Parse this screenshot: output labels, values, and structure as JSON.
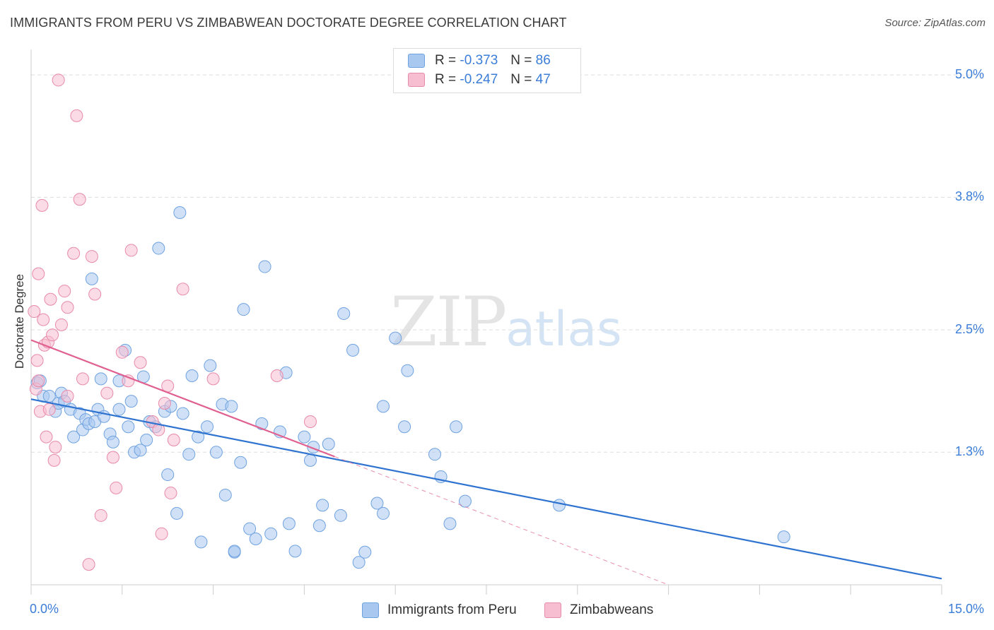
{
  "title": "IMMIGRANTS FROM PERU VS ZIMBABWEAN DOCTORATE DEGREE CORRELATION CHART",
  "source": "Source: ZipAtlas.com",
  "watermark": {
    "zip": "ZIP",
    "atlas": "atlas"
  },
  "legend": {
    "r_label": "R =",
    "n_label": "N =",
    "rows": [
      {
        "r": "-0.373",
        "n": "86",
        "color": "#a9c8f0"
      },
      {
        "r": "-0.247",
        "n": "47",
        "color": "#f7bdd0"
      }
    ]
  },
  "chart_data": {
    "type": "scatter",
    "ylabel": "Doctorate Degree",
    "xlim": [
      0,
      15
    ],
    "ylim": [
      0,
      5.25
    ],
    "x_tick_labels": [
      "0.0%",
      "15.0%"
    ],
    "y_ticks": [
      {
        "value": 1.3,
        "label": "1.3%"
      },
      {
        "value": 2.5,
        "label": "2.5%"
      },
      {
        "value": 3.8,
        "label": "3.8%"
      },
      {
        "value": 5.0,
        "label": "5.0%"
      }
    ],
    "grid": true,
    "series": [
      {
        "name": "Immigrants from Peru",
        "color": "#a9c8f0",
        "stroke": "#6fa2e0",
        "trend_color": "#2f73d0",
        "trend": {
          "x1": 0.0,
          "y1": 1.82,
          "x2": 15.0,
          "y2": 0.06,
          "dashed_from": null
        },
        "points": [
          [
            0.1,
            1.98
          ],
          [
            0.15,
            2.0
          ],
          [
            0.2,
            1.85
          ],
          [
            0.3,
            1.85
          ],
          [
            0.4,
            1.7
          ],
          [
            0.45,
            1.78
          ],
          [
            0.5,
            1.88
          ],
          [
            0.55,
            1.8
          ],
          [
            0.65,
            1.72
          ],
          [
            0.7,
            1.45
          ],
          [
            0.8,
            1.68
          ],
          [
            0.85,
            1.52
          ],
          [
            0.9,
            1.62
          ],
          [
            0.95,
            1.58
          ],
          [
            1.0,
            3.0
          ],
          [
            1.05,
            1.6
          ],
          [
            1.1,
            1.72
          ],
          [
            1.15,
            2.02
          ],
          [
            1.2,
            1.65
          ],
          [
            1.3,
            1.48
          ],
          [
            1.35,
            1.4
          ],
          [
            1.45,
            1.72
          ],
          [
            1.45,
            2.0
          ],
          [
            1.55,
            2.3
          ],
          [
            1.6,
            1.55
          ],
          [
            1.65,
            1.8
          ],
          [
            1.7,
            1.3
          ],
          [
            1.8,
            1.32
          ],
          [
            1.85,
            2.04
          ],
          [
            1.9,
            1.42
          ],
          [
            1.95,
            1.6
          ],
          [
            2.05,
            1.55
          ],
          [
            2.1,
            3.3
          ],
          [
            2.2,
            1.7
          ],
          [
            2.25,
            1.08
          ],
          [
            2.3,
            1.75
          ],
          [
            2.4,
            0.7
          ],
          [
            2.45,
            3.65
          ],
          [
            2.5,
            1.68
          ],
          [
            2.6,
            1.28
          ],
          [
            2.65,
            2.05
          ],
          [
            2.75,
            1.45
          ],
          [
            2.8,
            0.42
          ],
          [
            2.9,
            1.55
          ],
          [
            2.95,
            2.15
          ],
          [
            3.05,
            1.3
          ],
          [
            3.15,
            1.77
          ],
          [
            3.2,
            0.88
          ],
          [
            3.3,
            1.75
          ],
          [
            3.35,
            0.32
          ],
          [
            3.35,
            0.33
          ],
          [
            3.45,
            1.2
          ],
          [
            3.5,
            2.7
          ],
          [
            3.6,
            0.55
          ],
          [
            3.7,
            0.45
          ],
          [
            3.8,
            1.58
          ],
          [
            3.85,
            3.12
          ],
          [
            3.95,
            0.5
          ],
          [
            4.1,
            1.5
          ],
          [
            4.2,
            2.08
          ],
          [
            4.25,
            0.6
          ],
          [
            4.35,
            0.33
          ],
          [
            4.5,
            1.45
          ],
          [
            4.6,
            1.22
          ],
          [
            4.65,
            1.35
          ],
          [
            4.75,
            0.58
          ],
          [
            4.8,
            0.78
          ],
          [
            4.9,
            1.38
          ],
          [
            5.1,
            0.68
          ],
          [
            5.15,
            2.66
          ],
          [
            5.3,
            2.3
          ],
          [
            5.4,
            0.22
          ],
          [
            5.5,
            0.32
          ],
          [
            5.7,
            0.8
          ],
          [
            5.8,
            1.75
          ],
          [
            5.8,
            0.7
          ],
          [
            6.0,
            2.42
          ],
          [
            6.15,
            1.55
          ],
          [
            6.2,
            2.1
          ],
          [
            6.65,
            1.28
          ],
          [
            6.75,
            1.06
          ],
          [
            6.9,
            0.6
          ],
          [
            7.0,
            1.55
          ],
          [
            7.15,
            0.82
          ],
          [
            8.7,
            0.78
          ],
          [
            12.4,
            0.47
          ]
        ]
      },
      {
        "name": "Zimbabweans",
        "color": "#f7bdd0",
        "stroke": "#e88aab",
        "trend_color": "#e06090",
        "trend": {
          "x1": 0.0,
          "y1": 2.4,
          "x2": 10.5,
          "y2": 0.0,
          "dashed_from": 5.0
        },
        "points": [
          [
            0.05,
            2.68
          ],
          [
            0.08,
            1.92
          ],
          [
            0.1,
            2.2
          ],
          [
            0.12,
            2.0
          ],
          [
            0.12,
            3.05
          ],
          [
            0.15,
            1.7
          ],
          [
            0.18,
            3.72
          ],
          [
            0.2,
            2.6
          ],
          [
            0.22,
            2.35
          ],
          [
            0.25,
            1.45
          ],
          [
            0.28,
            2.38
          ],
          [
            0.3,
            1.72
          ],
          [
            0.32,
            2.8
          ],
          [
            0.35,
            2.45
          ],
          [
            0.38,
            1.22
          ],
          [
            0.4,
            1.35
          ],
          [
            0.45,
            4.95
          ],
          [
            0.5,
            2.55
          ],
          [
            0.55,
            2.88
          ],
          [
            0.6,
            2.72
          ],
          [
            0.6,
            1.85
          ],
          [
            0.7,
            3.25
          ],
          [
            0.75,
            4.6
          ],
          [
            0.8,
            3.78
          ],
          [
            0.85,
            2.02
          ],
          [
            0.95,
            0.2
          ],
          [
            1.0,
            3.22
          ],
          [
            1.05,
            2.85
          ],
          [
            1.15,
            0.68
          ],
          [
            1.25,
            1.88
          ],
          [
            1.35,
            1.25
          ],
          [
            1.4,
            0.95
          ],
          [
            1.5,
            2.28
          ],
          [
            1.6,
            2.0
          ],
          [
            1.65,
            3.28
          ],
          [
            1.8,
            2.18
          ],
          [
            2.0,
            1.6
          ],
          [
            2.1,
            1.52
          ],
          [
            2.15,
            0.5
          ],
          [
            2.2,
            1.78
          ],
          [
            2.25,
            1.95
          ],
          [
            2.3,
            0.9
          ],
          [
            2.35,
            1.42
          ],
          [
            2.5,
            2.9
          ],
          [
            3.0,
            2.02
          ],
          [
            4.05,
            2.05
          ],
          [
            4.6,
            1.6
          ]
        ]
      }
    ]
  }
}
